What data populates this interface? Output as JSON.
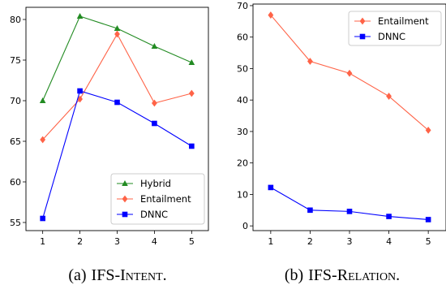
{
  "chart_data": [
    {
      "type": "line",
      "x": [
        1,
        2,
        3,
        4,
        5
      ],
      "xticks": [
        1,
        2,
        3,
        4,
        5
      ],
      "ylim": [
        54,
        81.5
      ],
      "yticks": [
        55,
        60,
        65,
        70,
        75,
        80
      ],
      "grid": false,
      "legend": "lower-right",
      "series": [
        {
          "name": "Hybrid",
          "values": [
            70.0,
            80.4,
            78.9,
            76.7,
            74.7
          ],
          "color": "#228b22",
          "marker": "triangle"
        },
        {
          "name": "Entailment",
          "values": [
            65.2,
            70.2,
            78.2,
            69.7,
            70.9
          ],
          "color": "#ff6347",
          "marker": "diamond"
        },
        {
          "name": "DNNC",
          "values": [
            55.5,
            71.2,
            69.8,
            67.2,
            64.4
          ],
          "color": "#0000ff",
          "marker": "square"
        }
      ]
    },
    {
      "type": "line",
      "x": [
        1,
        2,
        3,
        4,
        5
      ],
      "xticks": [
        1,
        2,
        3,
        4,
        5
      ],
      "ylim": [
        -1.5,
        70.5
      ],
      "yticks": [
        0,
        10,
        20,
        30,
        40,
        50,
        60,
        70
      ],
      "grid": false,
      "legend": "upper-right",
      "series": [
        {
          "name": "Entailment",
          "values": [
            67.0,
            52.3,
            48.5,
            41.2,
            30.4
          ],
          "color": "#ff6347",
          "marker": "diamond"
        },
        {
          "name": "DNNC",
          "values": [
            12.2,
            5.0,
            4.6,
            3.0,
            2.0
          ],
          "color": "#0000ff",
          "marker": "square"
        }
      ]
    }
  ],
  "captions": [
    {
      "label": "(a)",
      "prefix": "IFS-",
      "initial": "I",
      "rest": "ntent",
      "suffix": "."
    },
    {
      "label": "(b)",
      "prefix": "IFS-",
      "initial": "R",
      "rest": "elation",
      "suffix": "."
    }
  ]
}
